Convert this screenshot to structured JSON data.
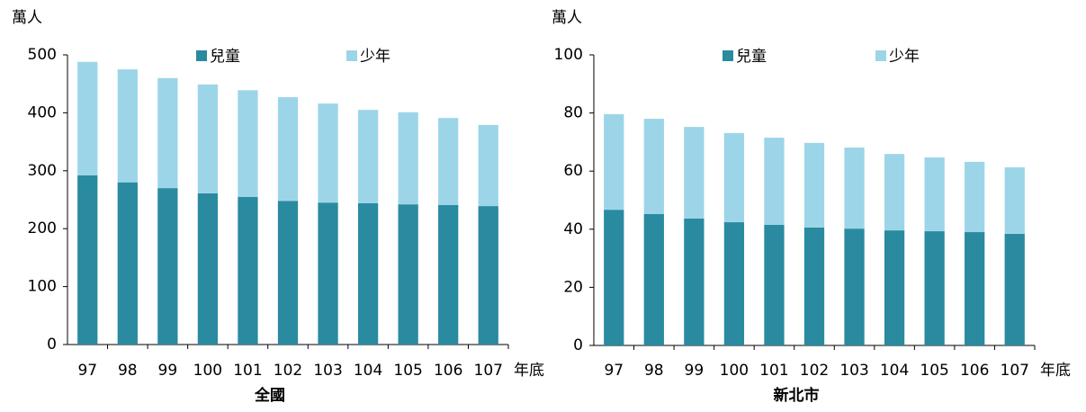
{
  "chart_data": [
    {
      "type": "bar",
      "stacked": true,
      "title": "全國",
      "y_unit": "萬人",
      "x_unit": "年底",
      "categories": [
        "97",
        "98",
        "99",
        "100",
        "101",
        "102",
        "103",
        "104",
        "105",
        "106",
        "107"
      ],
      "series": [
        {
          "name": "兒童",
          "color": "#2a8aa0",
          "values": [
            292,
            280,
            270,
            261,
            255,
            248,
            245,
            244,
            242,
            241,
            239
          ]
        },
        {
          "name": "少年",
          "color": "#9dd5e8",
          "values": [
            196,
            195,
            190,
            188,
            184,
            179,
            171,
            161,
            159,
            150,
            140
          ]
        }
      ],
      "ylim": [
        0,
        500
      ],
      "yticks": [
        0,
        100,
        200,
        300,
        400,
        500
      ]
    },
    {
      "type": "bar",
      "stacked": true,
      "title": "新北市",
      "y_unit": "萬人",
      "x_unit": "年底",
      "categories": [
        "97",
        "98",
        "99",
        "100",
        "101",
        "102",
        "103",
        "104",
        "105",
        "106",
        "107"
      ],
      "series": [
        {
          "name": "兒童",
          "color": "#2a8aa0",
          "values": [
            46.7,
            45.2,
            43.7,
            42.4,
            41.5,
            40.6,
            40.2,
            39.6,
            39.3,
            39.0,
            38.4
          ]
        },
        {
          "name": "少年",
          "color": "#9dd5e8",
          "values": [
            32.9,
            32.8,
            31.5,
            30.7,
            30.0,
            29.1,
            27.9,
            26.3,
            25.4,
            24.2,
            22.9
          ]
        }
      ],
      "ylim": [
        0,
        100
      ],
      "yticks": [
        0,
        20,
        40,
        60,
        80,
        100
      ]
    }
  ]
}
